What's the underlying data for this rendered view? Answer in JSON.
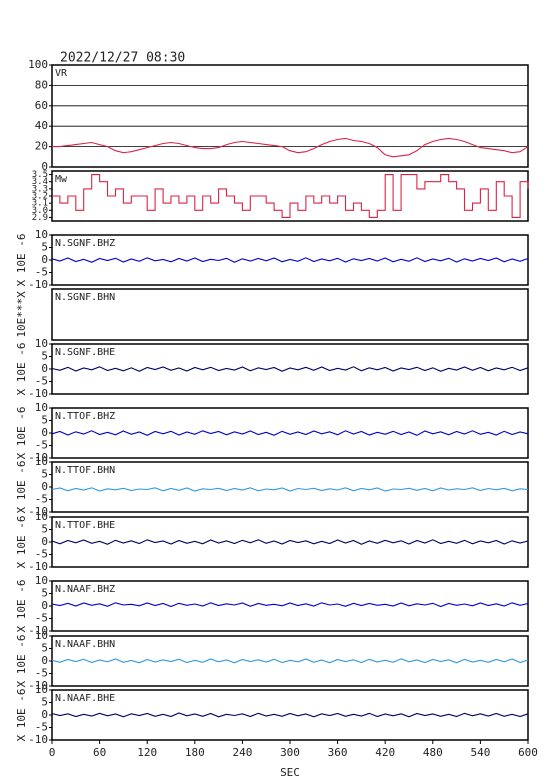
{
  "chart_data": {
    "type": "multi-panel",
    "title": "2022/12/27 08:30",
    "xlabel": "SEC",
    "xlim": [
      0,
      600
    ],
    "xticks": [
      0,
      60,
      120,
      180,
      240,
      300,
      360,
      420,
      480,
      540,
      600
    ],
    "x": [
      0,
      10,
      20,
      30,
      40,
      50,
      60,
      70,
      80,
      90,
      100,
      110,
      120,
      130,
      140,
      150,
      160,
      170,
      180,
      190,
      200,
      210,
      220,
      230,
      240,
      250,
      260,
      270,
      280,
      290,
      300,
      310,
      320,
      330,
      340,
      350,
      360,
      370,
      380,
      390,
      400,
      410,
      420,
      430,
      440,
      450,
      460,
      470,
      480,
      490,
      500,
      510,
      520,
      530,
      540,
      550,
      560,
      570,
      580,
      590,
      600
    ],
    "panels": [
      {
        "type": "line",
        "name": "VR",
        "color": "#dd2244",
        "ylim": [
          0,
          100
        ],
        "yticks": [
          0,
          20,
          40,
          60,
          80,
          100
        ],
        "grid": true,
        "values": [
          20,
          20,
          21,
          22,
          23,
          24,
          22,
          20,
          16,
          14,
          15,
          17,
          19,
          21,
          23,
          24,
          23,
          21,
          19,
          18,
          18,
          19,
          22,
          24,
          25,
          24,
          23,
          22,
          21,
          20,
          16,
          14,
          15,
          18,
          22,
          25,
          27,
          28,
          26,
          25,
          23,
          19,
          12,
          10,
          11,
          12,
          16,
          22,
          25,
          27,
          28,
          27,
          25,
          22,
          19,
          18,
          17,
          16,
          14,
          15,
          20
        ]
      },
      {
        "type": "step",
        "name": "Mw",
        "color": "#dd2244",
        "ylim": [
          2.85,
          3.55
        ],
        "yticks": [
          {
            "value": 2.9,
            "label": "2.9"
          },
          {
            "value": 3,
            "label": "3.0"
          },
          {
            "value": 3.1,
            "label": "3.1"
          },
          {
            "value": 3.2,
            "label": "3.2"
          },
          {
            "value": 3.3,
            "label": "3.3"
          },
          {
            "value": 3.4,
            "label": "3.4"
          },
          {
            "value": 3.5,
            "label": "3.5"
          }
        ],
        "grid": false,
        "values": [
          3.2,
          3.1,
          3.2,
          3.0,
          3.3,
          3.5,
          3.4,
          3.2,
          3.3,
          3.1,
          3.2,
          3.2,
          3.0,
          3.3,
          3.1,
          3.2,
          3.1,
          3.2,
          3.0,
          3.2,
          3.1,
          3.3,
          3.2,
          3.1,
          3.0,
          3.2,
          3.2,
          3.1,
          3.0,
          2.9,
          3.1,
          3.0,
          3.2,
          3.1,
          3.2,
          3.1,
          3.2,
          3.0,
          3.1,
          3.0,
          2.9,
          3.0,
          3.5,
          3.0,
          3.5,
          3.5,
          3.3,
          3.4,
          3.4,
          3.5,
          3.4,
          3.3,
          3.0,
          3.1,
          3.3,
          3.0,
          3.4,
          3.2,
          2.9,
          3.4,
          3.3
        ]
      },
      {
        "type": "line",
        "name": "N.SGNF.BHZ",
        "y_label": "X 10E -6",
        "color": "#0000cc",
        "ylim": [
          -10,
          10
        ],
        "yticks": [
          -10,
          -5,
          0,
          5,
          10
        ],
        "grid": false,
        "values": [
          0.5,
          -0.4,
          0.8,
          -0.6,
          0.3,
          -0.9,
          0.6,
          -0.2,
          0.7,
          -0.8,
          0.4,
          -0.5,
          0.9,
          -0.3,
          0.2,
          -0.7,
          0.6,
          -0.4,
          0.8,
          -0.6,
          0.3,
          -0.2,
          0.7,
          -0.9,
          0.5,
          -0.4,
          0.6,
          -0.3,
          0.8,
          -0.7,
          0.2,
          -0.5,
          0.9,
          -0.6,
          0.4,
          -0.3,
          0.7,
          -0.8,
          0.5,
          -0.2,
          0.6,
          -0.4,
          0.8,
          -0.7,
          0.3,
          -0.5,
          0.9,
          -0.6,
          0.4,
          -0.3,
          0.7,
          -0.8,
          0.5,
          -0.4,
          0.6,
          -0.2,
          0.8,
          -0.7,
          0.4,
          -0.5,
          0.6
        ]
      },
      {
        "type": "empty",
        "name": "N.SGNF.BHN",
        "y_label": "10E***X"
      },
      {
        "type": "line",
        "name": "N.SGNF.BHE",
        "y_label": "X 10E -6",
        "color": "#000066",
        "ylim": [
          -10,
          10
        ],
        "yticks": [
          -10,
          -5,
          0,
          5,
          10
        ],
        "grid": false,
        "values": [
          0.2,
          -0.5,
          0.7,
          -0.8,
          0.4,
          -0.3,
          0.9,
          -0.6,
          0.3,
          -0.7,
          0.5,
          -0.9,
          0.6,
          -0.2,
          0.8,
          -0.5,
          0.4,
          -0.8,
          0.6,
          -0.3,
          0.7,
          -0.6,
          0.2,
          -0.4,
          0.8,
          -0.7,
          0.5,
          -0.2,
          0.6,
          -0.9,
          0.4,
          -0.3,
          0.7,
          -0.5,
          0.8,
          -0.6,
          0.3,
          -0.4,
          0.9,
          -0.7,
          0.5,
          -0.3,
          0.6,
          -0.8,
          0.4,
          -0.2,
          0.7,
          -0.6,
          0.5,
          -0.9,
          0.3,
          -0.4,
          0.8,
          -0.5,
          0.6,
          -0.7,
          0.4,
          -0.3,
          0.7,
          -0.6,
          0.5
        ]
      },
      {
        "type": "line",
        "name": "N.TTOF.BHZ",
        "y_label": "X 10E -6",
        "color": "#0000cc",
        "ylim": [
          -10,
          10
        ],
        "yticks": [
          -10,
          -5,
          0,
          5,
          10
        ],
        "grid": false,
        "values": [
          -0.3,
          0.6,
          -0.8,
          0.5,
          -0.4,
          0.9,
          -0.6,
          0.3,
          -0.7,
          0.8,
          -0.5,
          0.4,
          -0.9,
          0.6,
          -0.3,
          0.7,
          -0.8,
          0.4,
          -0.5,
          0.9,
          -0.2,
          0.6,
          -0.7,
          0.5,
          -0.4,
          0.8,
          -0.6,
          0.3,
          -0.9,
          0.7,
          -0.5,
          0.4,
          -0.6,
          0.8,
          -0.3,
          0.5,
          -0.7,
          0.9,
          -0.4,
          0.6,
          -0.8,
          0.3,
          -0.5,
          0.7,
          -0.6,
          0.4,
          -0.9,
          0.8,
          -0.3,
          0.5,
          -0.7,
          0.6,
          -0.4,
          0.9,
          -0.5,
          0.3,
          -0.8,
          0.7,
          -0.6,
          0.4,
          -0.3
        ]
      },
      {
        "type": "line",
        "name": "N.TTOF.BHN",
        "y_label": "X 10E -6",
        "color": "#3399dd",
        "ylim": [
          -10,
          10
        ],
        "yticks": [
          -10,
          -5,
          0,
          5,
          10
        ],
        "grid": false,
        "values": [
          -1.0,
          -0.4,
          -1.5,
          -0.6,
          -1.2,
          -0.3,
          -1.6,
          -0.7,
          -1.1,
          -0.5,
          -1.4,
          -0.8,
          -1.0,
          -0.3,
          -1.5,
          -0.6,
          -1.3,
          -0.4,
          -1.6,
          -0.7,
          -1.0,
          -0.5,
          -1.4,
          -0.6,
          -1.2,
          -0.3,
          -1.5,
          -0.8,
          -1.1,
          -0.4,
          -1.6,
          -0.6,
          -1.0,
          -0.5,
          -1.4,
          -0.7,
          -1.2,
          -0.3,
          -1.5,
          -0.6,
          -1.1,
          -0.4,
          -1.6,
          -0.8,
          -1.0,
          -0.5,
          -1.3,
          -0.6,
          -1.5,
          -0.4,
          -1.2,
          -0.7,
          -1.0,
          -0.3,
          -1.4,
          -0.6,
          -1.1,
          -0.5,
          -1.5,
          -0.7,
          -1.0
        ]
      },
      {
        "type": "line",
        "name": "N.TTOF.BHE",
        "y_label": "X 10E -6",
        "color": "#000066",
        "ylim": [
          -10,
          10
        ],
        "yticks": [
          -10,
          -5,
          0,
          5,
          10
        ],
        "grid": false,
        "values": [
          0.4,
          -0.7,
          0.6,
          -0.3,
          0.8,
          -0.5,
          0.3,
          -0.9,
          0.7,
          -0.4,
          0.5,
          -0.6,
          0.9,
          -0.2,
          0.4,
          -0.8,
          0.6,
          -0.5,
          0.3,
          -0.7,
          0.8,
          -0.4,
          0.5,
          -0.6,
          0.7,
          -0.3,
          0.9,
          -0.5,
          0.4,
          -0.8,
          0.6,
          -0.2,
          0.5,
          -0.7,
          0.3,
          -0.6,
          0.8,
          -0.4,
          0.6,
          -0.9,
          0.4,
          -0.5,
          0.7,
          -0.3,
          0.5,
          -0.8,
          0.6,
          -0.4,
          0.9,
          -0.6,
          0.3,
          -0.5,
          0.7,
          -0.7,
          0.4,
          -0.3,
          0.6,
          -0.8,
          0.5,
          -0.4,
          0.4
        ]
      },
      {
        "type": "line",
        "name": "N.NAAF.BHZ",
        "y_label": "X 10E -6",
        "color": "#0000cc",
        "ylim": [
          -10,
          10
        ],
        "yticks": [
          -10,
          -5,
          0,
          5,
          10
        ],
        "grid": false,
        "values": [
          0.8,
          0.2,
          1.1,
          0.0,
          1.2,
          0.3,
          0.9,
          -0.1,
          1.3,
          0.4,
          0.7,
          0.1,
          1.2,
          0.2,
          1.0,
          -0.2,
          1.1,
          0.3,
          0.8,
          0.0,
          1.3,
          0.2,
          0.9,
          0.4,
          1.2,
          -0.1,
          1.0,
          0.3,
          0.7,
          0.1,
          1.2,
          0.2,
          0.9,
          0.0,
          1.3,
          0.4,
          0.8,
          -0.1,
          1.1,
          0.2,
          1.0,
          0.3,
          0.7,
          0.0,
          1.2,
          0.1,
          0.9,
          0.4,
          1.1,
          -0.2,
          1.0,
          0.3,
          0.8,
          0.1,
          1.2,
          0.2,
          0.9,
          0.0,
          1.3,
          0.3,
          1.0
        ]
      },
      {
        "type": "line",
        "name": "N.NAAF.BHN",
        "y_label": "X 10E -6",
        "color": "#3399dd",
        "ylim": [
          -10,
          10
        ],
        "yticks": [
          -10,
          -5,
          0,
          5,
          10
        ],
        "grid": false,
        "values": [
          0.3,
          -0.5,
          0.6,
          -0.2,
          0.7,
          -0.6,
          0.4,
          -0.3,
          0.8,
          -0.5,
          0.2,
          -0.7,
          0.6,
          -0.4,
          0.5,
          -0.2,
          0.7,
          -0.6,
          0.3,
          -0.5,
          0.8,
          -0.3,
          0.4,
          -0.7,
          0.6,
          -0.2,
          0.5,
          -0.4,
          0.7,
          -0.6,
          0.3,
          -0.3,
          0.8,
          -0.5,
          0.4,
          -0.7,
          0.6,
          -0.2,
          0.5,
          -0.6,
          0.7,
          -0.4,
          0.3,
          -0.5,
          0.9,
          -0.3,
          0.4,
          -0.6,
          0.6,
          -0.2,
          0.5,
          -0.7,
          0.7,
          -0.4,
          0.3,
          -0.5,
          0.6,
          -0.3,
          0.8,
          -0.6,
          0.4
        ]
      },
      {
        "type": "line",
        "name": "N.NAAF.BHE",
        "y_label": "X 10E -6",
        "color": "#000066",
        "ylim": [
          -10,
          10
        ],
        "yticks": [
          -10,
          -5,
          0,
          5,
          10
        ],
        "grid": false,
        "values": [
          0.6,
          -0.2,
          0.5,
          -0.6,
          0.3,
          -0.4,
          0.7,
          -0.3,
          0.4,
          -0.7,
          0.5,
          -0.2,
          0.6,
          -0.5,
          0.3,
          -0.6,
          0.8,
          -0.3,
          0.4,
          -0.5,
          0.6,
          -0.7,
          0.3,
          -0.2,
          0.5,
          -0.6,
          0.7,
          -0.4,
          0.3,
          -0.5,
          0.6,
          -0.3,
          0.4,
          -0.7,
          0.5,
          -0.2,
          0.6,
          -0.5,
          0.3,
          -0.4,
          0.7,
          -0.6,
          0.4,
          -0.3,
          0.5,
          -0.7,
          0.6,
          -0.2,
          0.4,
          -0.5,
          0.3,
          -0.6,
          0.7,
          -0.3,
          0.5,
          -0.4,
          0.6,
          -0.5,
          0.3,
          -0.6,
          0.5
        ]
      }
    ]
  }
}
